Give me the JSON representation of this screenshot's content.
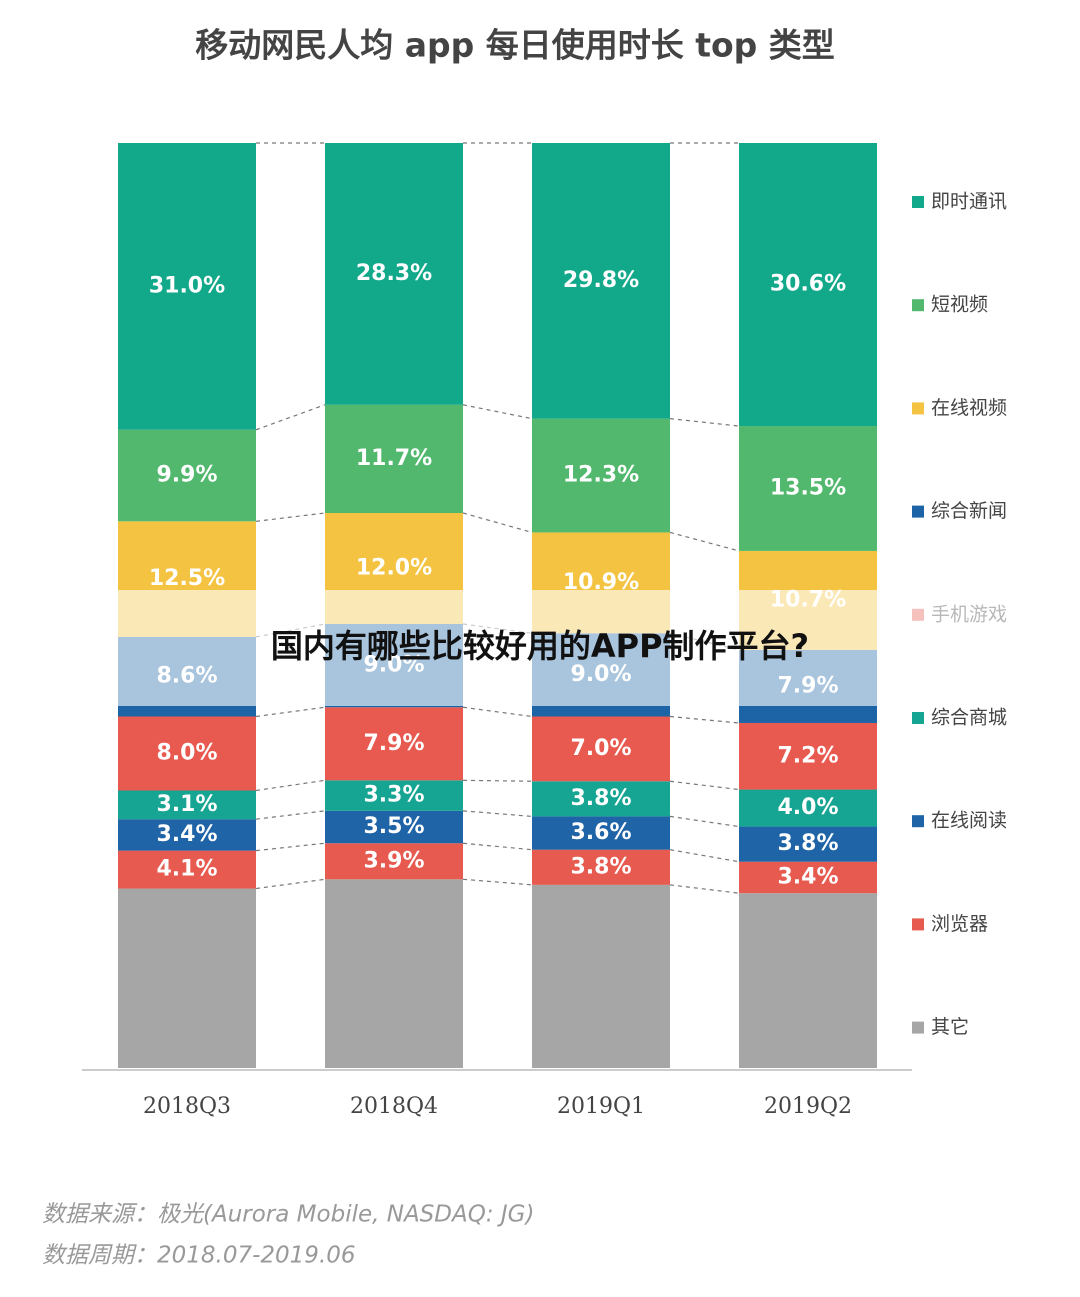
{
  "chart_data": {
    "type": "stacked_bar",
    "title": "移动网民人均 app 每日使用时长 top 类型",
    "overlay_text": "国内有哪些比较好用的APP制作平台?",
    "categories": [
      "2018Q3",
      "2018Q4",
      "2019Q1",
      "2019Q2"
    ],
    "ylim": [
      0,
      100
    ],
    "series": [
      {
        "name": "其它",
        "color": "#a6a6a6",
        "values": [
          19.4,
          20.4,
          19.8,
          18.9
        ]
      },
      {
        "name": "浏览器",
        "color": "#e65a4f",
        "values": [
          4.1,
          3.9,
          3.8,
          3.4
        ],
        "value_labels": [
          "4.1%",
          "3.9%",
          "3.8%",
          "3.4%"
        ]
      },
      {
        "name": "在线阅读",
        "color": "#1e64a6",
        "values": [
          3.4,
          3.5,
          3.6,
          3.8
        ],
        "value_labels": [
          "3.4%",
          "3.5%",
          "3.6%",
          "3.8%"
        ]
      },
      {
        "name": "综合商城",
        "color": "#16a592",
        "values": [
          3.1,
          3.3,
          3.8,
          4.0
        ],
        "value_labels": [
          "3.1%",
          "3.3%",
          "3.8%",
          "4.0%"
        ]
      },
      {
        "name": "手机游戏",
        "color": "#e85a50",
        "values": [
          8.0,
          7.9,
          7.0,
          7.2
        ],
        "value_labels": [
          "8.0%",
          "7.9%",
          "7.0%",
          "7.2%"
        ]
      },
      {
        "name": "综合新闻",
        "color": "#1d64a6",
        "values": [
          8.6,
          9.0,
          9.0,
          7.9
        ],
        "value_labels": [
          "8.6%",
          "9.0%",
          "9.0%",
          "7.9%"
        ]
      },
      {
        "name": "在线视频",
        "color": "#f5c342",
        "values": [
          12.5,
          12.0,
          10.9,
          10.7
        ],
        "value_labels": [
          "12.5%",
          "12.0%",
          "10.9%",
          "10.7%"
        ]
      },
      {
        "name": "短视频",
        "color": "#52b86e",
        "values": [
          9.9,
          11.7,
          12.3,
          13.5
        ],
        "value_labels": [
          "9.9%",
          "11.7%",
          "12.3%",
          "13.5%"
        ]
      },
      {
        "name": "即时通讯",
        "color": "#12a88a",
        "values": [
          31.0,
          28.3,
          29.8,
          30.6
        ],
        "value_labels": [
          "31.0%",
          "28.3%",
          "29.8%",
          "30.6%"
        ]
      }
    ],
    "source": "数据来源：极光(Aurora Mobile, NASDAQ: JG)",
    "period": "数据周期：2018.07-2019.06"
  }
}
